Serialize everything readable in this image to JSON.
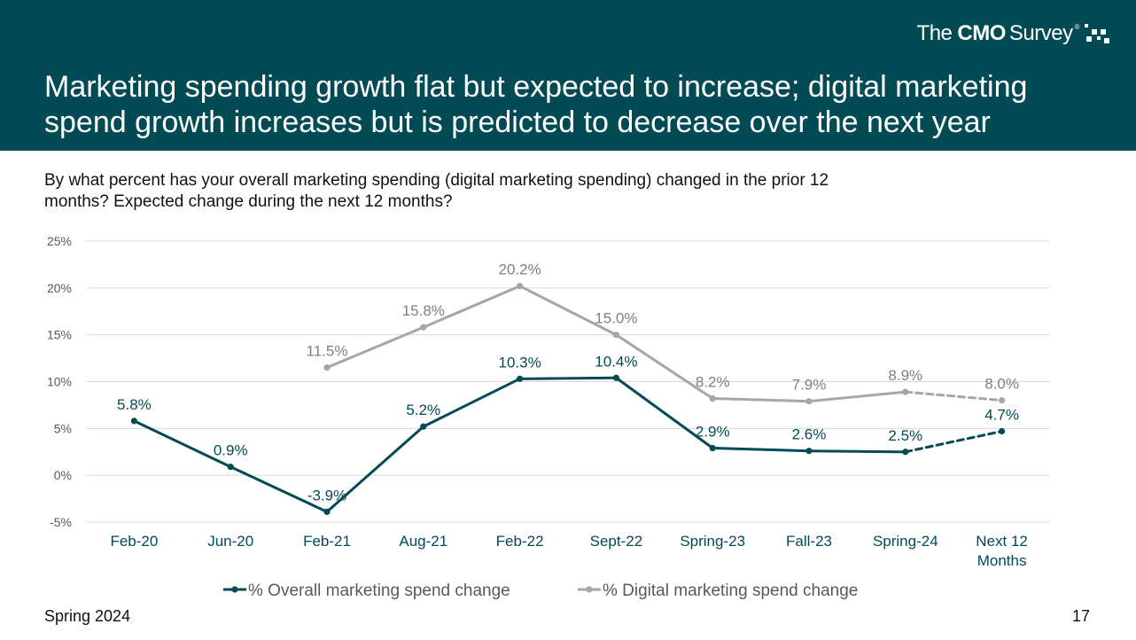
{
  "header": {
    "title": "Marketing spending growth flat but expected to increase; digital marketing spend growth increases but is predicted to decrease over the next year",
    "logo": {
      "pre": "The",
      "brand": "CMO",
      "post": "Survey",
      "reg": "®"
    }
  },
  "question": "By what percent has your overall marketing spending (digital marketing spending) changed in the prior 12 months? Expected change during the next 12 months?",
  "footer": {
    "left": "Spring 2024",
    "page_number": "17"
  },
  "colors": {
    "header_bg": "#024b55",
    "overall": "#024b55",
    "digital": "#a6a6a6",
    "grid": "#d9d9d9"
  },
  "chart_data": {
    "type": "line",
    "categories": [
      "Feb-20",
      "Jun-20",
      "Feb-21",
      "Aug-21",
      "Feb-22",
      "Sept-22",
      "Spring-23",
      "Fall-23",
      "Spring-24",
      "Next 12 Months"
    ],
    "yticks": [
      "25%",
      "20%",
      "15%",
      "10%",
      "5%",
      "0%",
      "-5%"
    ],
    "ylim": [
      -5,
      25
    ],
    "grid": true,
    "legend_position": "bottom",
    "series": [
      {
        "name": "% Overall marketing spend change",
        "values": [
          5.8,
          0.9,
          -3.9,
          5.2,
          10.3,
          10.4,
          2.9,
          2.6,
          2.5,
          4.7
        ],
        "labels": [
          "5.8%",
          "0.9%",
          "-3.9%",
          "5.2%",
          "10.3%",
          "10.4%",
          "2.9%",
          "2.6%",
          "2.5%",
          "4.7%"
        ],
        "dashed_last_segment": true
      },
      {
        "name": "% Digital marketing spend change",
        "values": [
          null,
          null,
          11.5,
          15.8,
          20.2,
          15.0,
          8.2,
          7.9,
          8.9,
          8.0
        ],
        "labels": [
          null,
          null,
          "11.5%",
          "15.8%",
          "20.2%",
          "15.0%",
          "8.2%",
          "7.9%",
          "8.9%",
          "8.0%"
        ],
        "dashed_last_segment": true
      }
    ]
  }
}
